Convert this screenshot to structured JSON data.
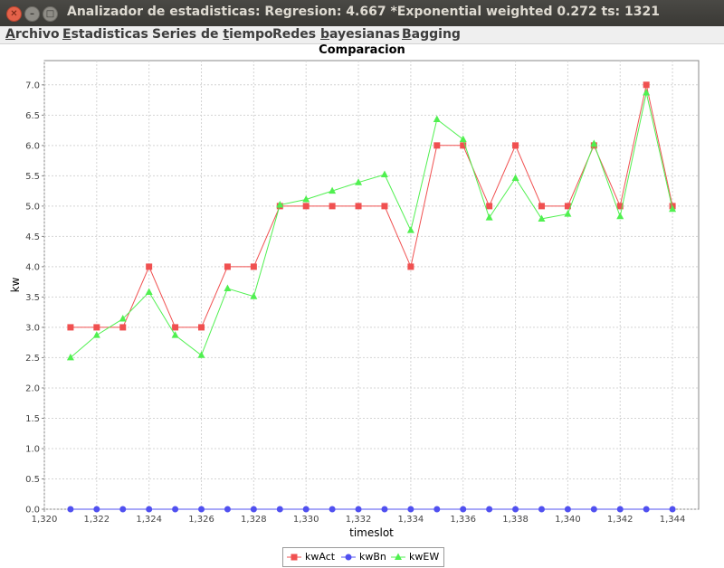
{
  "window": {
    "title": "Analizador de estadisticas: Regresion: 4.667 *Exponential weighted 0.272 ts: 1321",
    "close_symbol": "✕",
    "min_symbol": "–",
    "max_symbol": "□"
  },
  "menu": [
    {
      "label": "Archivo",
      "mnemonic_index": 0
    },
    {
      "label": "Estadisticas",
      "mnemonic_index": 0
    },
    {
      "label": "Series de tiempo",
      "mnemonic_index": 10
    },
    {
      "label": "Redes bayesianas",
      "mnemonic_index": 6
    },
    {
      "label": "Bagging",
      "mnemonic_index": 0
    }
  ],
  "chart_data": {
    "type": "line",
    "title": "Comparacion",
    "xlabel": "timeslot",
    "ylabel": "kw",
    "xlim": [
      1320,
      1345
    ],
    "ylim": [
      0,
      7.4
    ],
    "x_ticks": [
      "1,320",
      "1,322",
      "1,324",
      "1,326",
      "1,328",
      "1,330",
      "1,332",
      "1,334",
      "1,336",
      "1,338",
      "1,340",
      "1,342",
      "1,344"
    ],
    "y_ticks": [
      "0.0",
      "0.5",
      "1.0",
      "1.5",
      "2.0",
      "2.5",
      "3.0",
      "3.5",
      "4.0",
      "4.5",
      "5.0",
      "5.5",
      "6.0",
      "6.5",
      "7.0"
    ],
    "grid": true,
    "legend_position": "bottom-center",
    "x": [
      1321,
      1322,
      1323,
      1324,
      1325,
      1326,
      1327,
      1328,
      1329,
      1330,
      1331,
      1332,
      1333,
      1334,
      1335,
      1336,
      1337,
      1338,
      1339,
      1340,
      1341,
      1342,
      1343,
      1344
    ],
    "series": [
      {
        "name": "kwAct",
        "color": "#f05050",
        "marker": "square",
        "values": [
          3.0,
          3.0,
          3.0,
          4.0,
          3.0,
          3.0,
          4.0,
          4.0,
          5.0,
          5.0,
          5.0,
          5.0,
          5.0,
          4.0,
          6.0,
          6.0,
          5.0,
          6.0,
          5.0,
          5.0,
          6.0,
          5.0,
          7.0,
          5.0
        ]
      },
      {
        "name": "kwBn",
        "color": "#5050f0",
        "marker": "circle",
        "values": [
          0,
          0,
          0,
          0,
          0,
          0,
          0,
          0,
          0,
          0,
          0,
          0,
          0,
          0,
          0,
          0,
          0,
          0,
          0,
          0,
          0,
          0,
          0,
          0
        ]
      },
      {
        "name": "kwEW",
        "color": "#50f050",
        "marker": "triangle",
        "values": [
          2.5,
          2.87,
          3.14,
          3.58,
          2.87,
          2.54,
          3.64,
          3.51,
          5.02,
          5.11,
          5.25,
          5.39,
          5.52,
          4.6,
          6.43,
          6.1,
          4.81,
          5.46,
          4.79,
          4.87,
          6.03,
          4.83,
          6.87,
          4.95
        ]
      }
    ]
  }
}
